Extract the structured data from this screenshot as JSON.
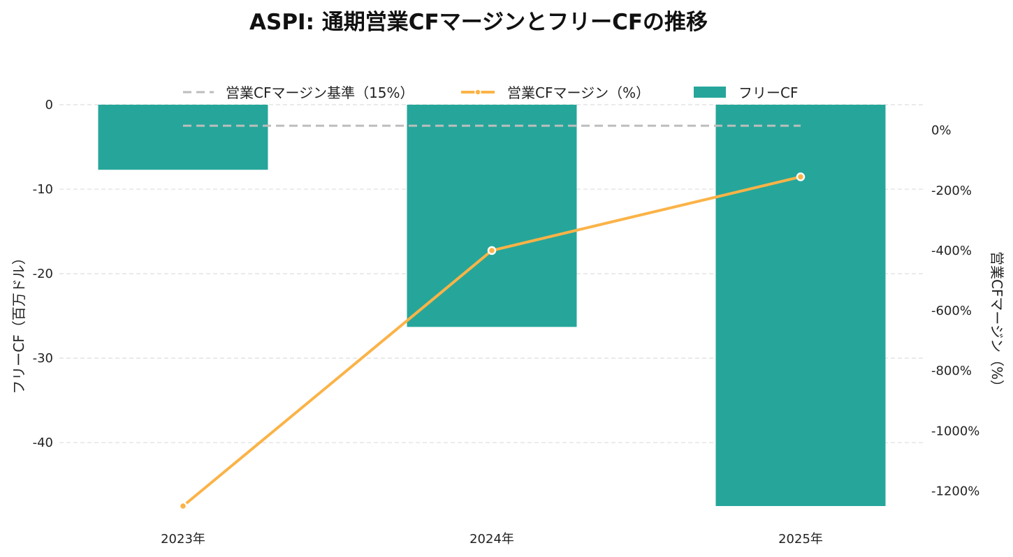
{
  "chart_data": {
    "type": "bar",
    "title": "ASPI: 通期営業CFマージンとフリーCFの推移",
    "categories": [
      "2023年",
      "2024年",
      "2025年"
    ],
    "bar_series": {
      "name": "フリーCF",
      "values": [
        -7.7,
        -26.3,
        -47.5
      ],
      "color": "#26a69a"
    },
    "line_series": {
      "name": "営業CFマージン（%）",
      "values": [
        -1250,
        -400,
        -155
      ],
      "color": "#fbb347"
    },
    "reference_line": {
      "name": "営業CFマージン基準（15%）",
      "value": 15,
      "color": "#bdbdbd"
    },
    "y_left": {
      "label": "フリーCF（百万ドル）",
      "lim": [
        -47.5,
        0
      ],
      "ticks": [
        0,
        -10,
        -20,
        -30,
        -40
      ],
      "tick_labels": [
        "0",
        "-10",
        "-20",
        "-30",
        "-40"
      ]
    },
    "y_right": {
      "label": "営業CFマージン（%）",
      "lim": [
        -1250,
        85
      ],
      "ticks": [
        0,
        -200,
        -400,
        -600,
        -800,
        -1000,
        -1200
      ],
      "tick_labels": [
        "0%",
        "-200%",
        "-400%",
        "-600%",
        "-800%",
        "-1000%",
        "-1200%"
      ]
    },
    "grid": true,
    "legend_position": "top-center"
  }
}
